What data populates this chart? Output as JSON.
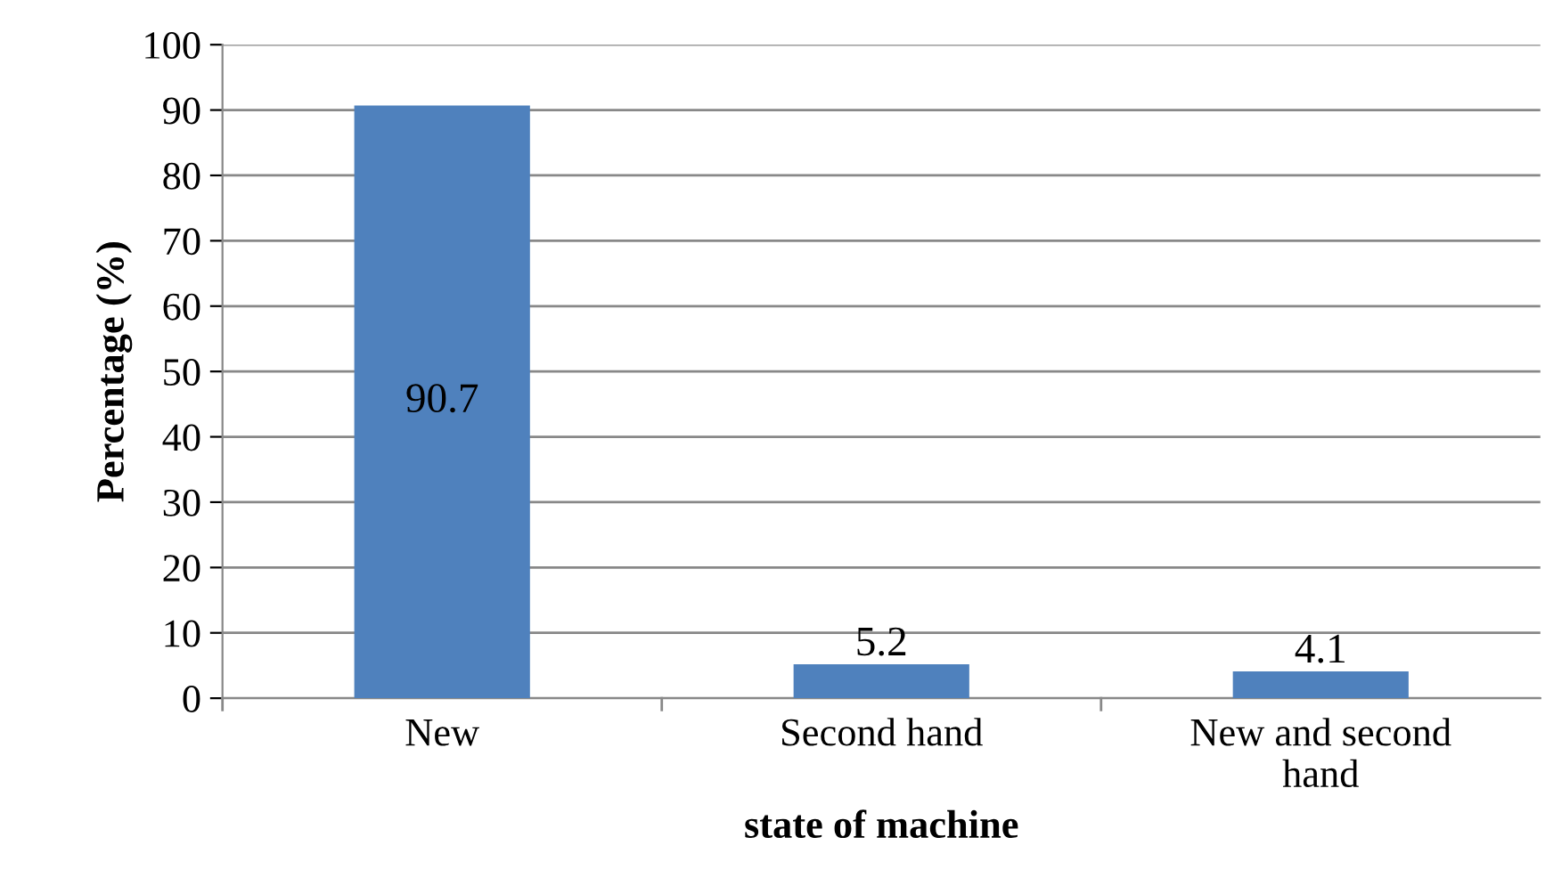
{
  "chart_data": {
    "type": "bar",
    "xlabel": "state of machine",
    "ylabel": "Percentage (%)",
    "categories": [
      "New",
      "Second hand",
      "New and second\nhand"
    ],
    "values": [
      90.7,
      5.2,
      4.1
    ],
    "color": "#4f81bd",
    "ylim": [
      0,
      100
    ],
    "yticks": [
      0,
      10,
      20,
      30,
      40,
      50,
      60,
      70,
      80,
      90,
      100
    ],
    "grid": "y",
    "data_labels": true,
    "legend": false
  }
}
